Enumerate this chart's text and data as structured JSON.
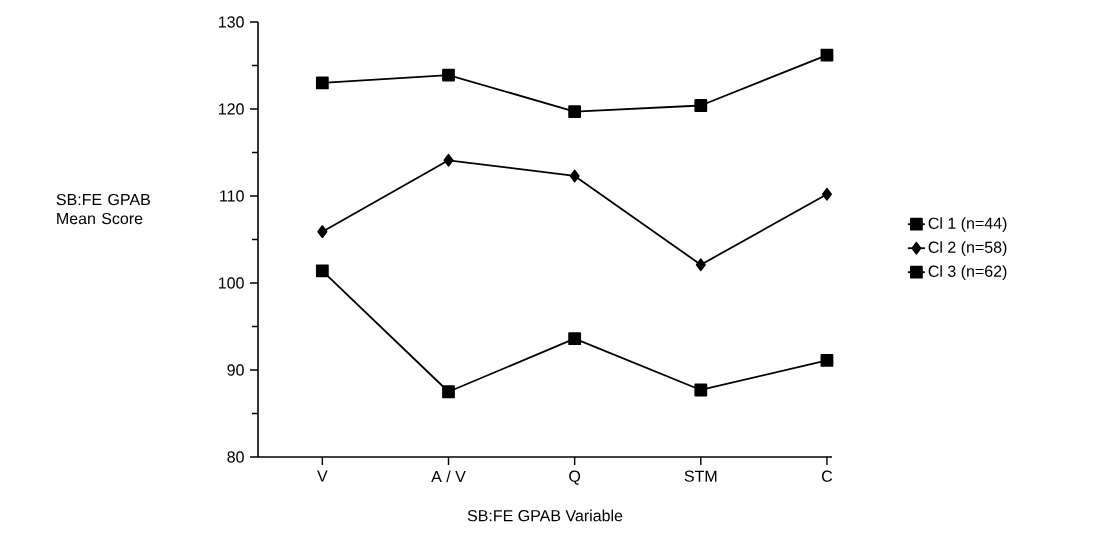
{
  "chart_data": {
    "type": "line",
    "xlabel": "SB:FE GPAB Variable",
    "ylabel": "SB:FE GPAB Mean Score",
    "categories": [
      "V",
      "A / V",
      "Q",
      "STM",
      "C"
    ],
    "series": [
      {
        "name": "Cl 1 (n=44)",
        "color": "#000000",
        "marker": "square",
        "values": [
          123.0,
          123.9,
          119.7,
          120.4,
          126.2
        ]
      },
      {
        "name": "Cl 2 (n=58)",
        "color": "#000000",
        "marker": "diamond",
        "values": [
          105.9,
          114.1,
          112.3,
          102.1,
          110.2
        ]
      },
      {
        "name": "Cl 3 (n=62)",
        "color": "#000000",
        "marker": "square",
        "values": [
          101.4,
          87.5,
          93.6,
          87.7,
          91.1
        ]
      }
    ],
    "ylim": [
      80,
      130
    ],
    "yticks": [
      80,
      90,
      100,
      110,
      120,
      130
    ],
    "grid": false,
    "legend": "right",
    "line_style": "solid"
  }
}
